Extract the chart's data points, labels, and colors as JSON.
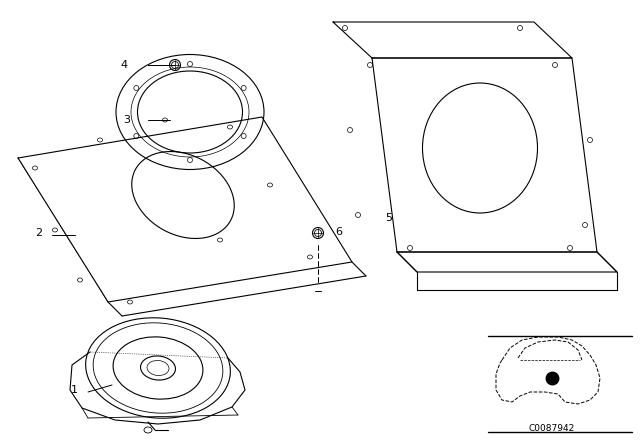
{
  "background_color": "#ffffff",
  "line_color": "#000000",
  "fig_width": 6.4,
  "fig_height": 4.48,
  "catalog_number": "C0087942",
  "labels": [
    "1",
    "2",
    "3",
    "4",
    "5",
    "6"
  ]
}
